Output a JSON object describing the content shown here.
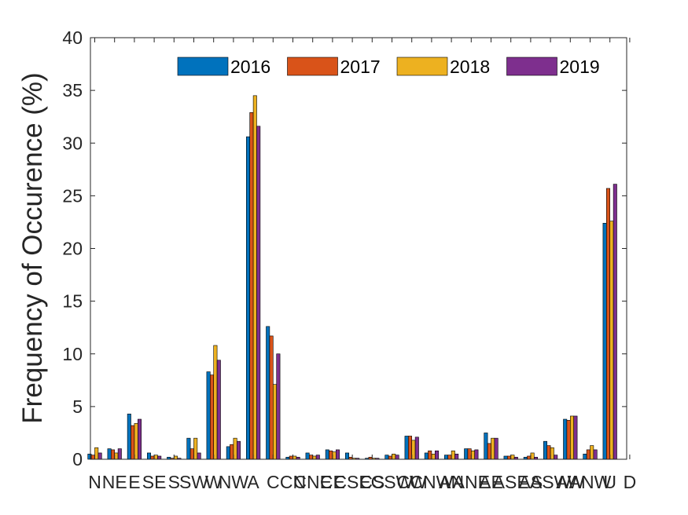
{
  "chart_data": {
    "type": "bar",
    "ylabel": "Frequency of Occurence (%)",
    "xlabel": "",
    "ylim": [
      0,
      40
    ],
    "yticks": [
      0,
      5,
      10,
      15,
      20,
      25,
      30,
      35,
      40
    ],
    "grid": false,
    "legend_position": "top-right",
    "categories": [
      "N",
      "NE",
      "E",
      "SE",
      "S",
      "SW",
      "W",
      "NW",
      "A",
      "C",
      "CN",
      "CNE",
      "CE",
      "CSE",
      "CS",
      "CSW",
      "CW",
      "CNW",
      "AN",
      "ANE",
      "AE",
      "ASE",
      "AS",
      "ASW",
      "AW",
      "ANW",
      "U",
      "D"
    ],
    "series": [
      {
        "name": "2016",
        "color": "#0072BD",
        "values": [
          0.5,
          1.0,
          4.3,
          0.6,
          0.2,
          2.0,
          8.3,
          1.2,
          30.6,
          12.6,
          0.2,
          0.6,
          0.9,
          0.6,
          0.1,
          0.4,
          2.2,
          0.6,
          0.4,
          1.0,
          2.5,
          0.3,
          0.2,
          1.7,
          3.8,
          0.5,
          22.4,
          0
        ]
      },
      {
        "name": "2017",
        "color": "#D95319",
        "values": [
          0.4,
          0.9,
          3.2,
          0.3,
          0.1,
          1.0,
          8.0,
          1.4,
          32.9,
          11.7,
          0.3,
          0.4,
          0.8,
          0.2,
          0.2,
          0.3,
          2.2,
          0.8,
          0.4,
          1.0,
          1.5,
          0.3,
          0.3,
          1.3,
          3.7,
          0.9,
          25.7,
          0
        ]
      },
      {
        "name": "2018",
        "color": "#EDB120",
        "values": [
          1.1,
          0.6,
          3.4,
          0.4,
          0.3,
          2.0,
          10.8,
          2.0,
          34.5,
          7.1,
          0.3,
          0.3,
          0.7,
          0.1,
          0.1,
          0.5,
          1.8,
          0.5,
          0.8,
          0.8,
          2.0,
          0.4,
          0.6,
          1.1,
          4.1,
          1.3,
          22.6,
          0
        ]
      },
      {
        "name": "2019",
        "color": "#7E2F8E",
        "values": [
          0.6,
          1.0,
          3.8,
          0.3,
          0.1,
          0.6,
          9.4,
          1.7,
          31.6,
          10.0,
          0.2,
          0.4,
          0.9,
          0.1,
          0.1,
          0.4,
          2.1,
          0.8,
          0.5,
          0.9,
          2.0,
          0.2,
          0.2,
          0.4,
          4.1,
          0.9,
          26.1,
          0
        ]
      }
    ]
  }
}
